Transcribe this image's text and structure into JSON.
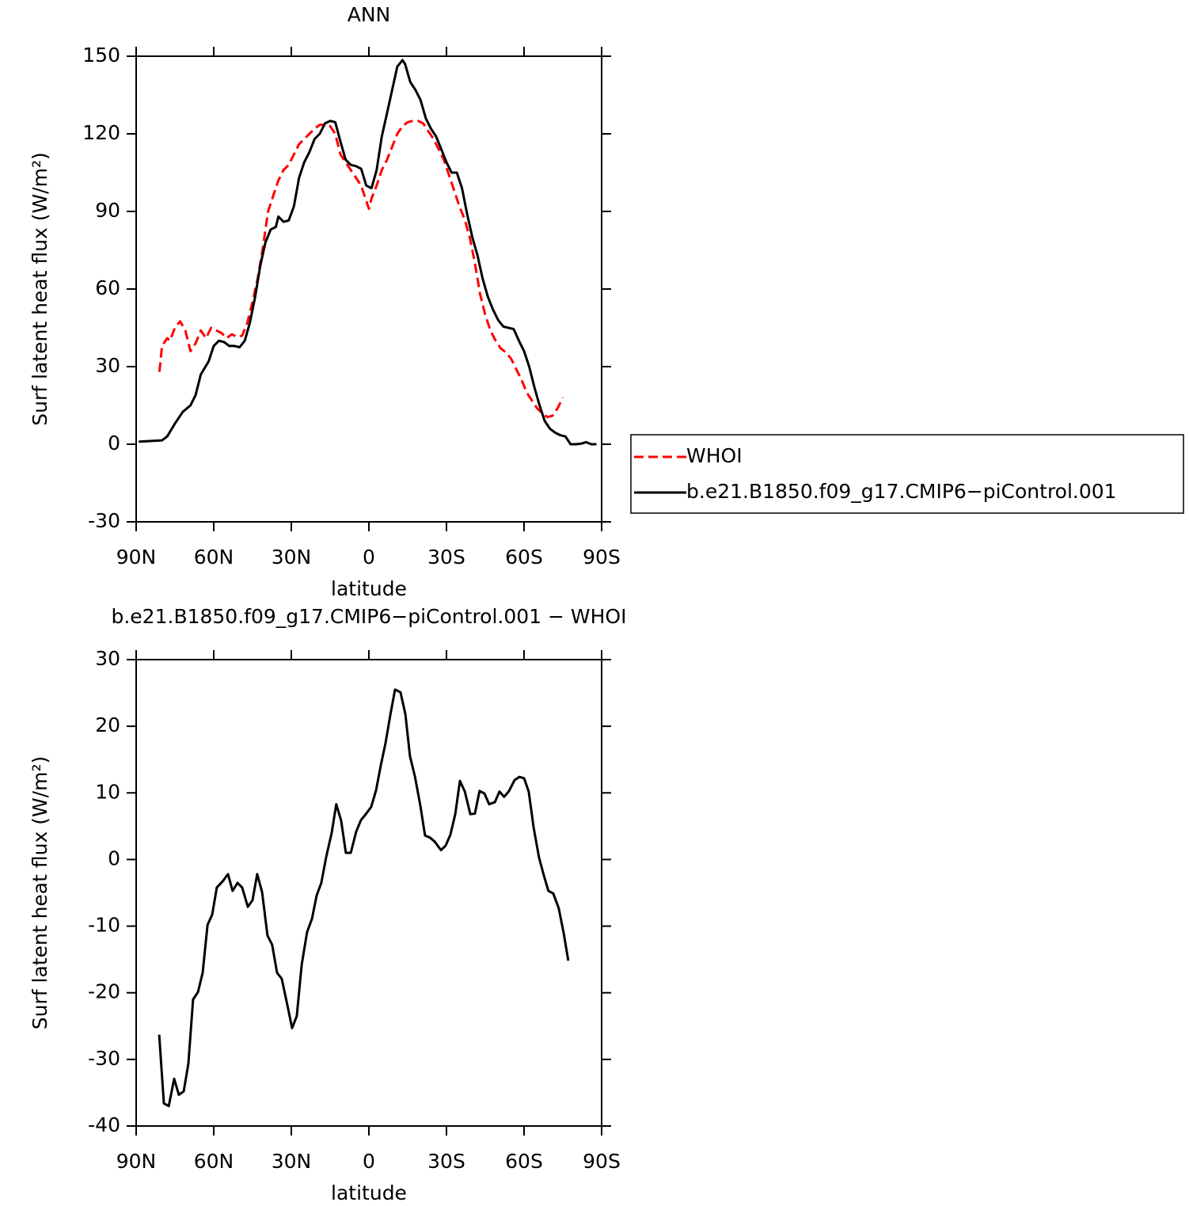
{
  "chart_data": [
    {
      "type": "line",
      "title": "ANN",
      "xlabel": "latitude",
      "ylabel": "Surf latent heat flux (W/m²)",
      "xlim": [
        90,
        -90
      ],
      "xticks": [
        {
          "value": 90,
          "label": "90N"
        },
        {
          "value": 60,
          "label": "60N"
        },
        {
          "value": 30,
          "label": "30N"
        },
        0,
        {
          "value": -30,
          "label": "30S"
        },
        {
          "value": -60,
          "label": "60S"
        },
        {
          "value": -90,
          "label": "90S"
        }
      ],
      "ylim": [
        -30,
        150
      ],
      "yticks": [
        -30,
        0,
        30,
        60,
        90,
        120,
        150
      ],
      "legend": "outside-right",
      "series": [
        {
          "name": "WHOI",
          "color": "#ff0000",
          "dash": true,
          "x": [
            81,
            80,
            78,
            77,
            75,
            73,
            71,
            69,
            67,
            65,
            63,
            61,
            59,
            57,
            55,
            53,
            51,
            49,
            47,
            45,
            43,
            41,
            39,
            37,
            35,
            33,
            31,
            29,
            27,
            25,
            23,
            21,
            19,
            17,
            15,
            13,
            11,
            9,
            7,
            5,
            3,
            1,
            0,
            -1,
            -3,
            -5,
            -7,
            -9,
            -11,
            -13,
            -15,
            -17,
            -19,
            -21,
            -23,
            -25,
            -27,
            -29,
            -31,
            -33,
            -35,
            -37,
            -39,
            -41,
            -43,
            -45,
            -47,
            -49,
            -51,
            -53,
            -55,
            -57,
            -59,
            -61,
            -63,
            -65,
            -67,
            -69,
            -71,
            -73,
            -75
          ],
          "values": [
            28,
            38,
            41,
            40,
            45,
            47.5,
            44,
            36,
            39,
            44,
            41,
            45,
            44,
            43,
            41,
            42.5,
            41.5,
            42,
            47,
            55,
            64,
            76,
            90,
            96,
            102,
            106,
            108,
            112,
            116,
            118,
            120,
            122,
            123.5,
            123.5,
            123,
            120,
            112,
            109,
            106,
            103,
            100,
            94,
            91,
            95,
            100,
            106,
            110,
            115,
            120,
            123,
            124.5,
            125,
            125,
            124,
            121,
            118,
            114,
            110,
            104,
            98,
            92,
            87,
            80,
            70,
            58,
            50,
            44,
            40,
            37,
            35.5,
            33,
            29,
            25,
            20,
            17,
            14,
            12,
            10.5,
            11,
            14,
            18
          ]
        },
        {
          "name": "b.e21.B1850.f09_g17.CMIP6−piControl.001",
          "color": "#000000",
          "dash": false,
          "x": [
            89,
            80,
            78,
            75,
            72,
            69,
            67,
            65,
            62,
            60,
            58,
            56,
            54,
            52,
            50,
            48,
            46,
            44,
            42,
            40,
            38,
            36,
            35,
            33,
            31,
            29,
            27,
            25,
            23,
            21,
            19,
            17,
            15,
            13,
            11,
            9,
            7,
            5,
            3,
            1,
            -1,
            -3,
            -5,
            -7,
            -9,
            -11,
            -13,
            -14,
            -16,
            -18,
            -20,
            -22,
            -24,
            -26,
            -28,
            -30,
            -32,
            -34,
            -36,
            -38,
            -40,
            -42,
            -44,
            -46,
            -48,
            -50,
            -52,
            -54,
            -56,
            -58,
            -60,
            -62,
            -64,
            -66,
            -68,
            -70,
            -72,
            -74,
            -76,
            -78,
            -80,
            -82,
            -84,
            -86,
            -88
          ],
          "values": [
            1,
            1.5,
            3,
            8,
            12.5,
            15,
            19,
            27,
            32,
            38,
            40,
            39.5,
            38,
            38,
            37.5,
            40,
            47,
            57,
            69,
            78,
            83,
            84,
            88,
            86,
            86.5,
            92,
            103,
            109,
            113,
            118,
            120,
            124,
            125,
            124.5,
            117,
            110,
            108,
            107.5,
            106.5,
            100,
            99,
            106,
            119,
            128,
            137,
            146,
            148.5,
            147,
            140,
            137,
            133,
            126,
            122,
            119,
            114,
            109,
            105,
            105,
            99,
            89,
            80,
            73,
            64,
            57,
            52,
            48,
            45.5,
            45,
            44.5,
            40,
            36,
            30,
            22,
            15,
            9,
            6,
            4.5,
            3.5,
            3,
            0,
            0,
            0.2,
            0.8,
            0,
            0
          ]
        }
      ]
    },
    {
      "type": "line",
      "title": "b.e21.B1850.f09_g17.CMIP6−piControl.001  −  WHOI",
      "xlabel": "latitude",
      "ylabel": "Surf latent heat flux (W/m²)",
      "xlim": [
        90,
        -90
      ],
      "xticks": [
        {
          "value": 90,
          "label": "90N"
        },
        {
          "value": 60,
          "label": "60N"
        },
        {
          "value": 30,
          "label": "30N"
        },
        0,
        {
          "value": -30,
          "label": "30S"
        },
        {
          "value": -60,
          "label": "60S"
        },
        {
          "value": -90,
          "label": "90S"
        }
      ],
      "ylim": [
        -40,
        30
      ],
      "yticks": [
        -40,
        -30,
        -20,
        -10,
        0,
        10,
        20,
        30
      ],
      "color": "#000000",
      "x": [
        81.1,
        79.3,
        77.4,
        75.3,
        73.5,
        71.6,
        69.8,
        68,
        66.1,
        64.3,
        62.4,
        60.6,
        58.8,
        56.6,
        54.5,
        52.7,
        50.8,
        49,
        46.8,
        45,
        43.2,
        41.3,
        39.2,
        37.4,
        35.5,
        33.7,
        31.5,
        29.7,
        27.9,
        26,
        23.9,
        22,
        20.2,
        18.4,
        16.5,
        14.4,
        12.6,
        10.7,
        8.9,
        7,
        4.9,
        3.1,
        1.2,
        -0.9,
        -2.8,
        -4.6,
        -6.4,
        -8.3,
        -10.1,
        -12.2,
        -14.1,
        -15.9,
        -17.8,
        -19.9,
        -21.7,
        -23.6,
        -25.4,
        -27.9,
        -29.7,
        -31.5,
        -33.4,
        -35.2,
        -37.1,
        -39.2,
        -41,
        -42.8,
        -44.7,
        -46.5,
        -48.7,
        -50.5,
        -52.3,
        -54.2,
        -56.3,
        -58.2,
        -60,
        -61.8,
        -63.7,
        -65.8,
        -67.6,
        -69.4,
        -71.3,
        -73.4,
        -75.3,
        -77.1
      ],
      "values": [
        -26.3,
        -36.6,
        -37,
        -32.9,
        -35.3,
        -34.8,
        -30.6,
        -21,
        -19.9,
        -17,
        -9.8,
        -8.3,
        -4.2,
        -3.3,
        -2.2,
        -4.7,
        -3.5,
        -4.2,
        -7.1,
        -6.1,
        -2.2,
        -4.9,
        -11.4,
        -12.8,
        -17,
        -17.9,
        -21.9,
        -25.3,
        -23.5,
        -15.8,
        -10.9,
        -8.9,
        -5.4,
        -3.5,
        0.4,
        4,
        8.3,
        5.8,
        1,
        1,
        4.2,
        5.9,
        6.8,
        7.9,
        10.4,
        14.1,
        17.4,
        21.7,
        25.5,
        25.1,
        21.8,
        15.5,
        12.5,
        8.1,
        3.6,
        3.3,
        2.7,
        1.4,
        2.1,
        3.7,
        6.8,
        11.8,
        10.2,
        6.8,
        6.9,
        10.3,
        9.9,
        8.3,
        8.6,
        10.2,
        9.4,
        10.3,
        11.9,
        12.4,
        12.2,
        10.2,
        4.8,
        0.3,
        -2.3,
        -4.7,
        -5.1,
        -7.3,
        -11,
        -15.2
      ]
    }
  ]
}
